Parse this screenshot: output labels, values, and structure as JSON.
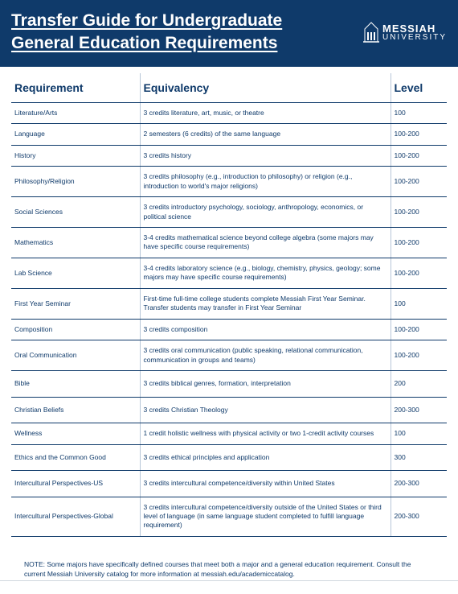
{
  "header": {
    "title_line1": "Transfer Guide for Undergraduate",
    "title_line2": "General Education Requirements",
    "logo_top": "MESSIAH",
    "logo_bot": "UNIVERSITY"
  },
  "colors": {
    "brand": "#0f3a6a",
    "divider": "#b8c7d8",
    "bg": "#ffffff"
  },
  "table": {
    "headers": [
      "Requirement",
      "Equivalency",
      "Level"
    ],
    "rows": [
      {
        "req": "Literature/Arts",
        "eq": "3 credits literature, art, music, or theatre",
        "lvl": "100",
        "tall": false
      },
      {
        "req": "Language",
        "eq": "2 semesters (6 credits) of the same language",
        "lvl": "100-200",
        "tall": false
      },
      {
        "req": "History",
        "eq": "3 credits history",
        "lvl": "100-200",
        "tall": false
      },
      {
        "req": "Philosophy/Religion",
        "eq": "3 credits philosophy (e.g., introduction to philosophy) or religion (e.g., introduction to world's major religions)",
        "lvl": "100-200",
        "tall": false
      },
      {
        "req": "Social Sciences",
        "eq": "3 credits introductory psychology, sociology, anthropology, economics, or political science",
        "lvl": "100-200",
        "tall": false
      },
      {
        "req": "Mathematics",
        "eq": "3-4 credits mathematical science beyond college algebra (some majors may have specific course requirements)",
        "lvl": "100-200",
        "tall": false
      },
      {
        "req": "Lab Science",
        "eq": "3-4 credits laboratory science (e.g., biology, chemistry, physics, geology; some majors may have specific course requirements)",
        "lvl": "100-200",
        "tall": false
      },
      {
        "req": "First Year Seminar",
        "eq": "First-time full-time college students complete Messiah First Year Seminar.  Transfer students may transfer in First Year Seminar",
        "lvl": "100",
        "tall": false
      },
      {
        "req": "Composition",
        "eq": "3 credits composition",
        "lvl": "100-200",
        "tall": false
      },
      {
        "req": "Oral Communication",
        "eq": "3 credits oral communication (public speaking, relational communication, communication in groups and teams)",
        "lvl": "100-200",
        "tall": false
      },
      {
        "req": "Bible",
        "eq": "3 credits biblical genres, formation, interpretation",
        "lvl": "200",
        "tall": true
      },
      {
        "req": "Christian Beliefs",
        "eq": "3 credits Christian Theology",
        "lvl": "200-300",
        "tall": true
      },
      {
        "req": "Wellness",
        "eq": "1 credit holistic wellness with physical activity or two 1-credit activity courses",
        "lvl": "100",
        "tall": false
      },
      {
        "req": "Ethics and the Common Good",
        "eq": "3 credits ethical principles and application",
        "lvl": "300",
        "tall": true
      },
      {
        "req": "Intercultural Perspectives-US",
        "eq": "3 credits intercultural competence/diversity within United States",
        "lvl": "200-300",
        "tall": true
      },
      {
        "req": "Intercultural Perspectives-Global",
        "eq": "3 credits intercultural competence/diversity outside of the United States or third level of language (in same language student completed to fulfill language requirement)",
        "lvl": "200-300",
        "tall": false
      }
    ]
  },
  "note": "NOTE: Some majors have specifically defined courses that meet both a major and a general education requirement. Consult the current Messiah University catalog for more information at messiah.edu/academiccatalog."
}
